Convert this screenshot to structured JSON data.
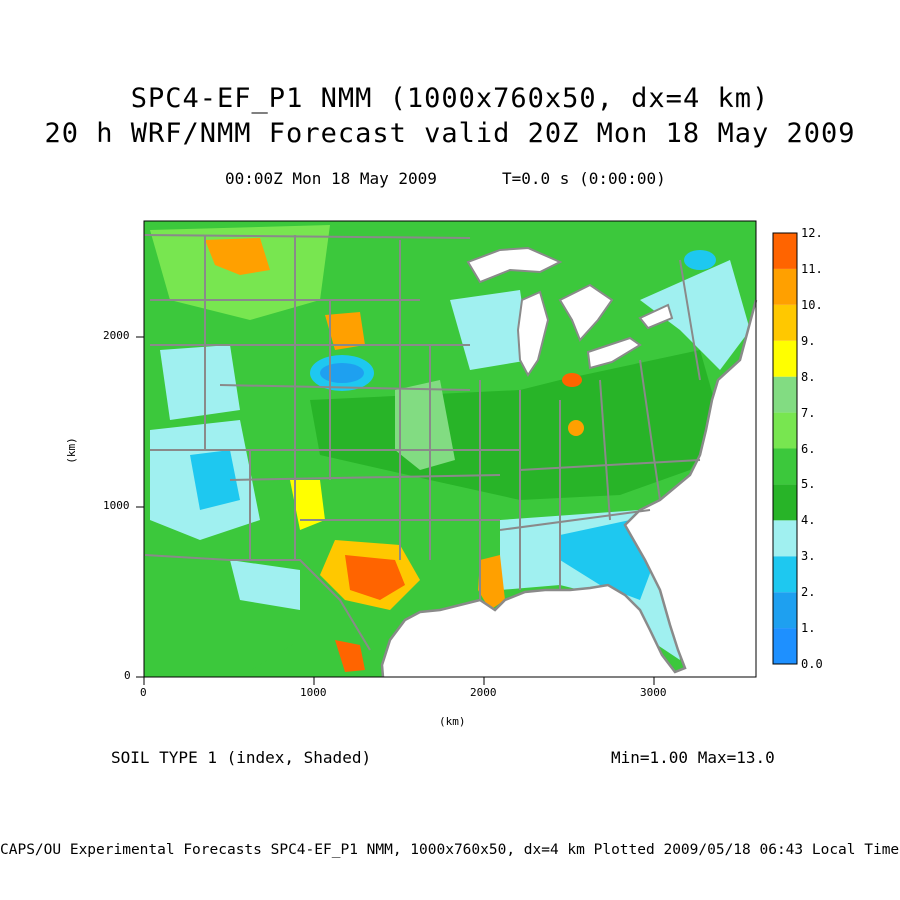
{
  "title": {
    "line1": "SPC4-EF_P1 NMM (1000x760x50, dx=4 km)",
    "line2": "20 h WRF/NMM Forecast valid 20Z Mon 18 May 2009"
  },
  "subtitle": {
    "time": "00:00Z Mon 18 May 2009",
    "elapsed": "T=0.0 s (0:00:00)"
  },
  "field_label": "SOIL TYPE 1 (index, Shaded)",
  "min_max": "Min=1.00 Max=13.0",
  "footer": "CAPS/OU Experimental Forecasts  SPC4-EF_P1 NMM, 1000x760x50, dx=4 km  Plotted 2009/05/18 06:43 Local Time",
  "axes": {
    "x_label": "(km)",
    "y_label": "(km)",
    "x_ticks": [
      "0",
      "1000",
      "2000",
      "3000"
    ],
    "y_ticks": [
      "0",
      "1000",
      "2000"
    ],
    "x_range_km": [
      0,
      3600
    ],
    "y_range_km": [
      0,
      2680
    ]
  },
  "colorbar": {
    "labels": [
      "0.0",
      "1.",
      "2.",
      "3.",
      "4.",
      "5.",
      "6.",
      "7.",
      "8.",
      "9.",
      "10.",
      "11.",
      "12."
    ],
    "colors": [
      "#1e90ff",
      "#1ea0f0",
      "#1ec8f0",
      "#a0f0f0",
      "#28b428",
      "#3cc83c",
      "#78e650",
      "#82dc82",
      "#ffff00",
      "#ffc800",
      "#ffa000",
      "#ff6400"
    ]
  },
  "colors": {
    "ocean": "#ffffff",
    "land_default": "#3cc83c",
    "border": "#8a8a8a"
  }
}
